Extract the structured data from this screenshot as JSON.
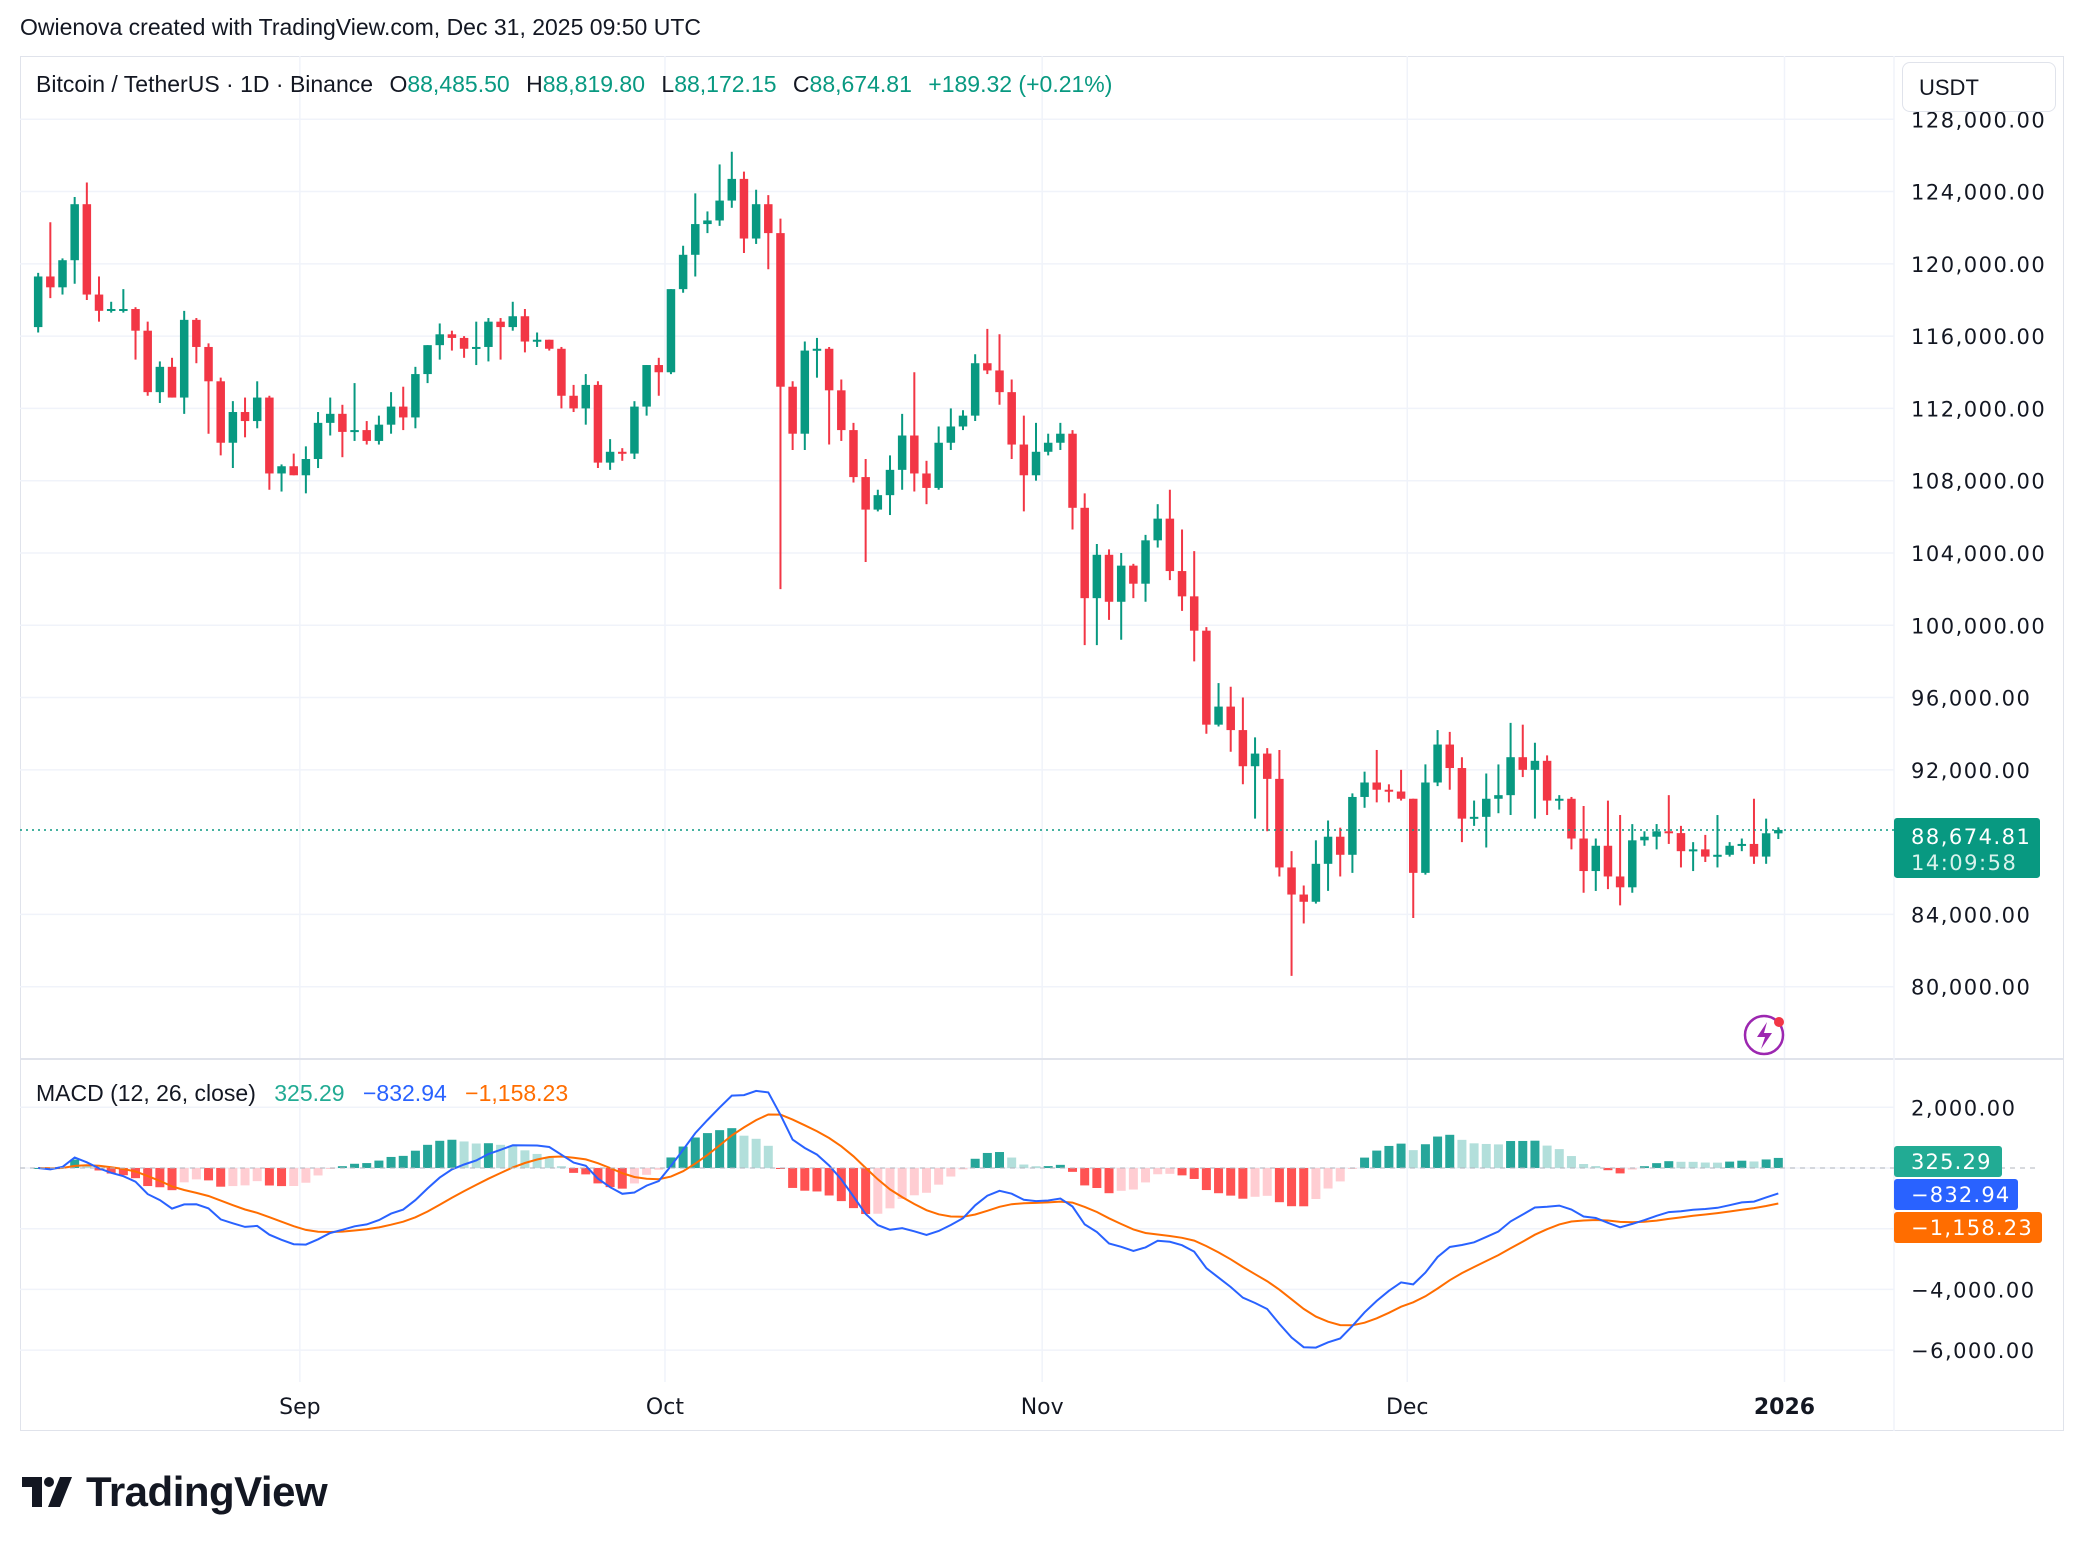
{
  "header": {
    "caption": "Owienova created with TradingView.com, Dec 31, 2025 09:50 UTC"
  },
  "legend": {
    "symbol": "Bitcoin / TetherUS · 1D · Binance",
    "open_label": "O",
    "open": "88,485.50",
    "high_label": "H",
    "high": "88,819.80",
    "low_label": "L",
    "low": "88,172.15",
    "close_label": "C",
    "close": "88,674.81",
    "change": "+189.32 (+0.21%)"
  },
  "currency_button": "USDT",
  "current_price": {
    "price": "88,674.81",
    "countdown": "14:09:58",
    "value": 88674.81
  },
  "macd_legend": {
    "title": "MACD (12, 26, close)",
    "hist": "325.29",
    "macd": "−832.94",
    "signal": "−1,158.23"
  },
  "macd_labels": {
    "hist": "325.29",
    "macd": "−832.94",
    "signal": "−1,158.23"
  },
  "logo": {
    "text": "TradingView"
  },
  "colors": {
    "up": "#089981",
    "down": "#f23645",
    "macd": "#2962ff",
    "signal": "#ff6d00",
    "hist_up_strong": "#26a69a",
    "hist_up_weak": "#b2dfdb",
    "hist_down_strong": "#ff5252",
    "hist_down_weak": "#ffcdd2",
    "hist_label": "#22ab94",
    "alert_icon": "#9c27b0"
  },
  "icons": {
    "alert": "lightning-bolt-icon",
    "logo": "tradingview-logo-icon"
  },
  "chart_data": [
    {
      "type": "candlestick",
      "title": "Bitcoin / TetherUS · 1D · Binance",
      "ylim": [
        76000,
        131500
      ],
      "xlim": [
        "2025-08-09",
        "2026-01-10"
      ],
      "y_ticks": [
        128000,
        124000,
        120000,
        116000,
        112000,
        108000,
        104000,
        100000,
        96000,
        92000,
        84000,
        80000
      ],
      "y_tick_labels": [
        "128,000.00",
        "124,000.00",
        "120,000.00",
        "116,000.00",
        "112,000.00",
        "108,000.00",
        "104,000.00",
        "100,000.00",
        "96,000.00",
        "92,000.00",
        "84,000.00",
        "80,000.00"
      ],
      "x_ticks": [
        {
          "date": "2025-09-01",
          "label": "Sep"
        },
        {
          "date": "2025-10-01",
          "label": "Oct"
        },
        {
          "date": "2025-11-01",
          "label": "Nov"
        },
        {
          "date": "2025-12-01",
          "label": "Dec"
        },
        {
          "date": "2026-01-01",
          "label": "2026",
          "bold": true
        }
      ],
      "grid": true,
      "columns": [
        "date",
        "open",
        "high",
        "low",
        "close"
      ],
      "candles": [
        [
          "2025-08-10",
          116500,
          119500,
          116200,
          119300
        ],
        [
          "2025-08-11",
          119300,
          122300,
          118100,
          118700
        ],
        [
          "2025-08-12",
          118700,
          120300,
          118300,
          120200
        ],
        [
          "2025-08-13",
          120200,
          123700,
          118900,
          123300
        ],
        [
          "2025-08-14",
          123300,
          124500,
          118000,
          118300
        ],
        [
          "2025-08-15",
          118300,
          119300,
          116800,
          117400
        ],
        [
          "2025-08-16",
          117400,
          117900,
          117300,
          117500
        ],
        [
          "2025-08-17",
          117500,
          118600,
          117300,
          117500
        ],
        [
          "2025-08-18",
          117500,
          117600,
          114700,
          116300
        ],
        [
          "2025-08-19",
          116300,
          116800,
          112700,
          112900
        ],
        [
          "2025-08-20",
          112900,
          114600,
          112300,
          114300
        ],
        [
          "2025-08-21",
          114300,
          114800,
          112600,
          112600
        ],
        [
          "2025-08-22",
          112600,
          117400,
          111700,
          116900
        ],
        [
          "2025-08-23",
          116900,
          117000,
          114500,
          115400
        ],
        [
          "2025-08-24",
          115400,
          115600,
          110600,
          113500
        ],
        [
          "2025-08-25",
          113500,
          113700,
          109400,
          110100
        ],
        [
          "2025-08-26",
          110100,
          112400,
          108700,
          111800
        ],
        [
          "2025-08-27",
          111800,
          112600,
          110400,
          111300
        ],
        [
          "2025-08-28",
          111300,
          113500,
          110900,
          112600
        ],
        [
          "2025-08-29",
          112600,
          112700,
          107500,
          108400
        ],
        [
          "2025-08-30",
          108400,
          108900,
          107400,
          108800
        ],
        [
          "2025-08-31",
          108800,
          109500,
          108300,
          108300
        ],
        [
          "2025-09-01",
          108300,
          109900,
          107300,
          109200
        ],
        [
          "2025-09-02",
          109200,
          111800,
          108700,
          111200
        ],
        [
          "2025-09-03",
          111200,
          112600,
          110500,
          111700
        ],
        [
          "2025-09-04",
          111700,
          112200,
          109300,
          110700
        ],
        [
          "2025-09-05",
          110700,
          113400,
          110200,
          110800
        ],
        [
          "2025-09-06",
          110800,
          111300,
          110000,
          110200
        ],
        [
          "2025-09-07",
          110200,
          111600,
          110000,
          111100
        ],
        [
          "2025-09-08",
          111100,
          112900,
          110600,
          112100
        ],
        [
          "2025-09-09",
          112100,
          113200,
          110800,
          111500
        ],
        [
          "2025-09-10",
          111500,
          114300,
          110900,
          113900
        ],
        [
          "2025-09-11",
          113900,
          115500,
          113400,
          115500
        ],
        [
          "2025-09-12",
          115500,
          116700,
          114700,
          116100
        ],
        [
          "2025-09-13",
          116100,
          116300,
          115200,
          115900
        ],
        [
          "2025-09-14",
          115900,
          116000,
          114800,
          115300
        ],
        [
          "2025-09-15",
          115300,
          116800,
          114400,
          115400
        ],
        [
          "2025-09-16",
          115400,
          117000,
          114600,
          116800
        ],
        [
          "2025-09-17",
          116800,
          117000,
          114700,
          116500
        ],
        [
          "2025-09-18",
          116500,
          117900,
          116300,
          117100
        ],
        [
          "2025-09-19",
          117100,
          117500,
          115100,
          115700
        ],
        [
          "2025-09-20",
          115700,
          116200,
          115400,
          115800
        ],
        [
          "2025-09-21",
          115800,
          115800,
          115200,
          115300
        ],
        [
          "2025-09-22",
          115300,
          115400,
          112000,
          112700
        ],
        [
          "2025-09-23",
          112700,
          113300,
          111800,
          112000
        ],
        [
          "2025-09-24",
          112000,
          113900,
          111100,
          113300
        ],
        [
          "2025-09-25",
          113300,
          113500,
          108700,
          109000
        ],
        [
          "2025-09-26",
          109000,
          110300,
          108600,
          109600
        ],
        [
          "2025-09-27",
          109600,
          109800,
          109100,
          109500
        ],
        [
          "2025-09-28",
          109500,
          112400,
          109200,
          112100
        ],
        [
          "2025-09-29",
          112100,
          114400,
          111600,
          114400
        ],
        [
          "2025-09-30",
          114400,
          114800,
          112700,
          114000
        ],
        [
          "2025-10-01",
          114000,
          118600,
          113900,
          118600
        ],
        [
          "2025-10-02",
          118600,
          121000,
          118400,
          120500
        ],
        [
          "2025-10-03",
          120500,
          123900,
          119300,
          122200
        ],
        [
          "2025-10-04",
          122200,
          122900,
          121700,
          122400
        ],
        [
          "2025-10-05",
          122400,
          125500,
          122100,
          123500
        ],
        [
          "2025-10-06",
          123500,
          126200,
          123100,
          124700
        ],
        [
          "2025-10-07",
          124700,
          125100,
          120600,
          121400
        ],
        [
          "2025-10-08",
          121400,
          124100,
          121100,
          123300
        ],
        [
          "2025-10-09",
          123300,
          123800,
          119700,
          121700
        ],
        [
          "2025-10-10",
          121700,
          122500,
          102000,
          113200
        ],
        [
          "2025-10-11",
          113200,
          113500,
          109700,
          110600
        ],
        [
          "2025-10-12",
          110600,
          115700,
          109700,
          115200
        ],
        [
          "2025-10-13",
          115200,
          115900,
          113700,
          115300
        ],
        [
          "2025-10-14",
          115300,
          115400,
          110000,
          113000
        ],
        [
          "2025-10-15",
          113000,
          113600,
          110200,
          110800
        ],
        [
          "2025-10-16",
          110800,
          111200,
          107900,
          108200
        ],
        [
          "2025-10-17",
          108200,
          109200,
          103500,
          106400
        ],
        [
          "2025-10-18",
          106400,
          107500,
          106300,
          107200
        ],
        [
          "2025-10-19",
          107200,
          109400,
          106100,
          108600
        ],
        [
          "2025-10-20",
          108600,
          111700,
          107500,
          110500
        ],
        [
          "2025-10-21",
          110500,
          114000,
          107400,
          108400
        ],
        [
          "2025-10-22",
          108400,
          109100,
          106700,
          107600
        ],
        [
          "2025-10-23",
          107600,
          111000,
          107500,
          110100
        ],
        [
          "2025-10-24",
          110100,
          112000,
          109700,
          111000
        ],
        [
          "2025-10-25",
          111000,
          111900,
          110800,
          111600
        ],
        [
          "2025-10-26",
          111600,
          115000,
          111300,
          114500
        ],
        [
          "2025-10-27",
          114500,
          116400,
          113900,
          114100
        ],
        [
          "2025-10-28",
          114100,
          116100,
          112200,
          112900
        ],
        [
          "2025-10-29",
          112900,
          113600,
          109200,
          110000
        ],
        [
          "2025-10-30",
          110000,
          111600,
          106300,
          108300
        ],
        [
          "2025-10-31",
          108300,
          111200,
          108000,
          109600
        ],
        [
          "2025-11-01",
          109600,
          110600,
          109400,
          110100
        ],
        [
          "2025-11-02",
          110100,
          111200,
          109700,
          110600
        ],
        [
          "2025-11-03",
          110600,
          110800,
          105300,
          106500
        ],
        [
          "2025-11-04",
          106500,
          107300,
          98900,
          101500
        ],
        [
          "2025-11-05",
          101500,
          104500,
          98900,
          103900
        ],
        [
          "2025-11-06",
          103900,
          104200,
          100300,
          101300
        ],
        [
          "2025-11-07",
          101300,
          104000,
          99200,
          103300
        ],
        [
          "2025-11-08",
          103300,
          103400,
          101500,
          102300
        ],
        [
          "2025-11-09",
          102300,
          105000,
          101300,
          104700
        ],
        [
          "2025-11-10",
          104700,
          106700,
          104300,
          105900
        ],
        [
          "2025-11-11",
          105900,
          107500,
          102500,
          103000
        ],
        [
          "2025-11-12",
          103000,
          105300,
          100800,
          101600
        ],
        [
          "2025-11-13",
          101600,
          104100,
          98000,
          99700
        ],
        [
          "2025-11-14",
          99700,
          99900,
          94000,
          94500
        ],
        [
          "2025-11-15",
          94500,
          96800,
          94400,
          95500
        ],
        [
          "2025-11-16",
          95500,
          96600,
          93000,
          94200
        ],
        [
          "2025-11-17",
          94200,
          96000,
          91200,
          92200
        ],
        [
          "2025-11-18",
          92200,
          93800,
          89300,
          92900
        ],
        [
          "2025-11-19",
          92900,
          93200,
          88600,
          91500
        ],
        [
          "2025-11-20",
          91500,
          93100,
          86100,
          86600
        ],
        [
          "2025-11-21",
          86600,
          87500,
          80600,
          85100
        ],
        [
          "2025-11-22",
          85100,
          85600,
          83500,
          84700
        ],
        [
          "2025-11-23",
          84700,
          88100,
          84600,
          86800
        ],
        [
          "2025-11-24",
          86800,
          89200,
          85300,
          88300
        ],
        [
          "2025-11-25",
          88300,
          88800,
          86100,
          87300
        ],
        [
          "2025-11-26",
          87300,
          90700,
          86300,
          90500
        ],
        [
          "2025-11-27",
          90500,
          91900,
          89900,
          91300
        ],
        [
          "2025-11-28",
          91300,
          93100,
          90200,
          90900
        ],
        [
          "2025-11-29",
          90900,
          91200,
          90200,
          90800
        ],
        [
          "2025-11-30",
          90800,
          92000,
          90300,
          90400
        ],
        [
          "2025-12-01",
          90400,
          90400,
          83800,
          86300
        ],
        [
          "2025-12-02",
          86300,
          92300,
          86200,
          91300
        ],
        [
          "2025-12-03",
          91300,
          94200,
          91100,
          93400
        ],
        [
          "2025-12-04",
          93400,
          94100,
          90900,
          92100
        ],
        [
          "2025-12-05",
          92100,
          92700,
          88000,
          89300
        ],
        [
          "2025-12-06",
          89300,
          90300,
          88900,
          89400
        ],
        [
          "2025-12-07",
          89400,
          91800,
          87700,
          90400
        ],
        [
          "2025-12-08",
          90400,
          92300,
          89600,
          90600
        ],
        [
          "2025-12-09",
          90600,
          94600,
          89500,
          92700
        ],
        [
          "2025-12-10",
          92700,
          94500,
          91600,
          92000
        ],
        [
          "2025-12-11",
          92000,
          93500,
          89300,
          92500
        ],
        [
          "2025-12-12",
          92500,
          92800,
          89500,
          90300
        ],
        [
          "2025-12-13",
          90300,
          90600,
          89800,
          90400
        ],
        [
          "2025-12-14",
          90400,
          90500,
          87600,
          88200
        ],
        [
          "2025-12-15",
          88200,
          90000,
          85200,
          86400
        ],
        [
          "2025-12-16",
          86400,
          88200,
          85300,
          87800
        ],
        [
          "2025-12-17",
          87800,
          90300,
          85400,
          86100
        ],
        [
          "2025-12-18",
          86100,
          89500,
          84500,
          85500
        ],
        [
          "2025-12-19",
          85500,
          89000,
          85200,
          88100
        ],
        [
          "2025-12-20",
          88100,
          88600,
          87800,
          88300
        ],
        [
          "2025-12-21",
          88300,
          89000,
          87600,
          88600
        ],
        [
          "2025-12-22",
          88600,
          90600,
          87900,
          88500
        ],
        [
          "2025-12-23",
          88500,
          88900,
          86600,
          87500
        ],
        [
          "2025-12-24",
          87500,
          88000,
          86400,
          87600
        ],
        [
          "2025-12-25",
          87600,
          88400,
          86900,
          87200
        ],
        [
          "2025-12-26",
          87200,
          89500,
          86600,
          87300
        ],
        [
          "2025-12-27",
          87300,
          88000,
          87200,
          87800
        ],
        [
          "2025-12-28",
          87800,
          88200,
          87500,
          87900
        ],
        [
          "2025-12-29",
          87900,
          90400,
          86800,
          87200
        ],
        [
          "2025-12-30",
          87200,
          89300,
          86800,
          88490
        ],
        [
          "2025-12-31",
          88485.5,
          88819.8,
          88172.15,
          88674.81
        ]
      ]
    },
    {
      "type": "macd",
      "title": "MACD (12, 26, close)",
      "params": {
        "fast": 12,
        "slow": 26,
        "signal": 9,
        "source": "close"
      },
      "ylim": [
        -7050,
        3590
      ],
      "y_ticks": [
        2000,
        -4000,
        -6000
      ],
      "y_tick_labels": [
        "2,000.00",
        "−4,000.00",
        "−6,000.00"
      ],
      "grid_values": [
        2000,
        0,
        -2000,
        -4000,
        -6000
      ],
      "last_values": {
        "histogram": 325.29,
        "macd": -832.94,
        "signal": -1158.23
      }
    }
  ]
}
